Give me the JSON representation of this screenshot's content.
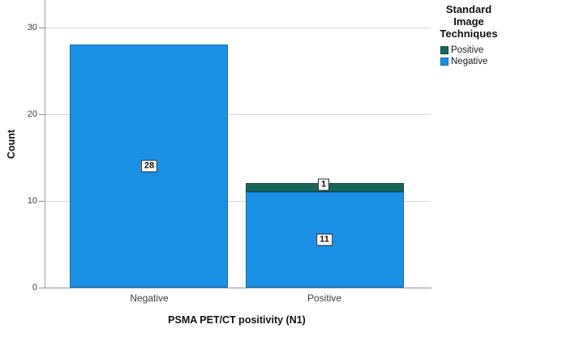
{
  "chart_data": {
    "type": "bar",
    "stacked": true,
    "xlabel": "PSMA PET/CT positivity (N1)",
    "ylabel": "Count",
    "categories": [
      "Negative",
      "Positive"
    ],
    "series": [
      {
        "name": "Negative",
        "color": "#1a90e4",
        "values": [
          28,
          11
        ]
      },
      {
        "name": "Positive",
        "color": "#17665c",
        "values": [
          0,
          1
        ]
      }
    ],
    "y_ticks": [
      0,
      10,
      20,
      30
    ],
    "ylim": [
      0,
      33
    ],
    "grid": "horizontal-gridlines-at-10-20-30",
    "legend": {
      "title": "Standard Image Techniques",
      "title_lines": [
        "Standard",
        "Image",
        "Techniques"
      ],
      "position": "top-right",
      "entries": [
        {
          "label": "Positive",
          "color": "#17665c"
        },
        {
          "label": "Negative",
          "color": "#1a90e4"
        }
      ]
    },
    "colors": {
      "bar_blue": "#1a90e4",
      "bar_teal": "#17665c",
      "gridline": "#d8d8d8",
      "axis": "#8f8f8f",
      "background": "#ffffff"
    }
  }
}
